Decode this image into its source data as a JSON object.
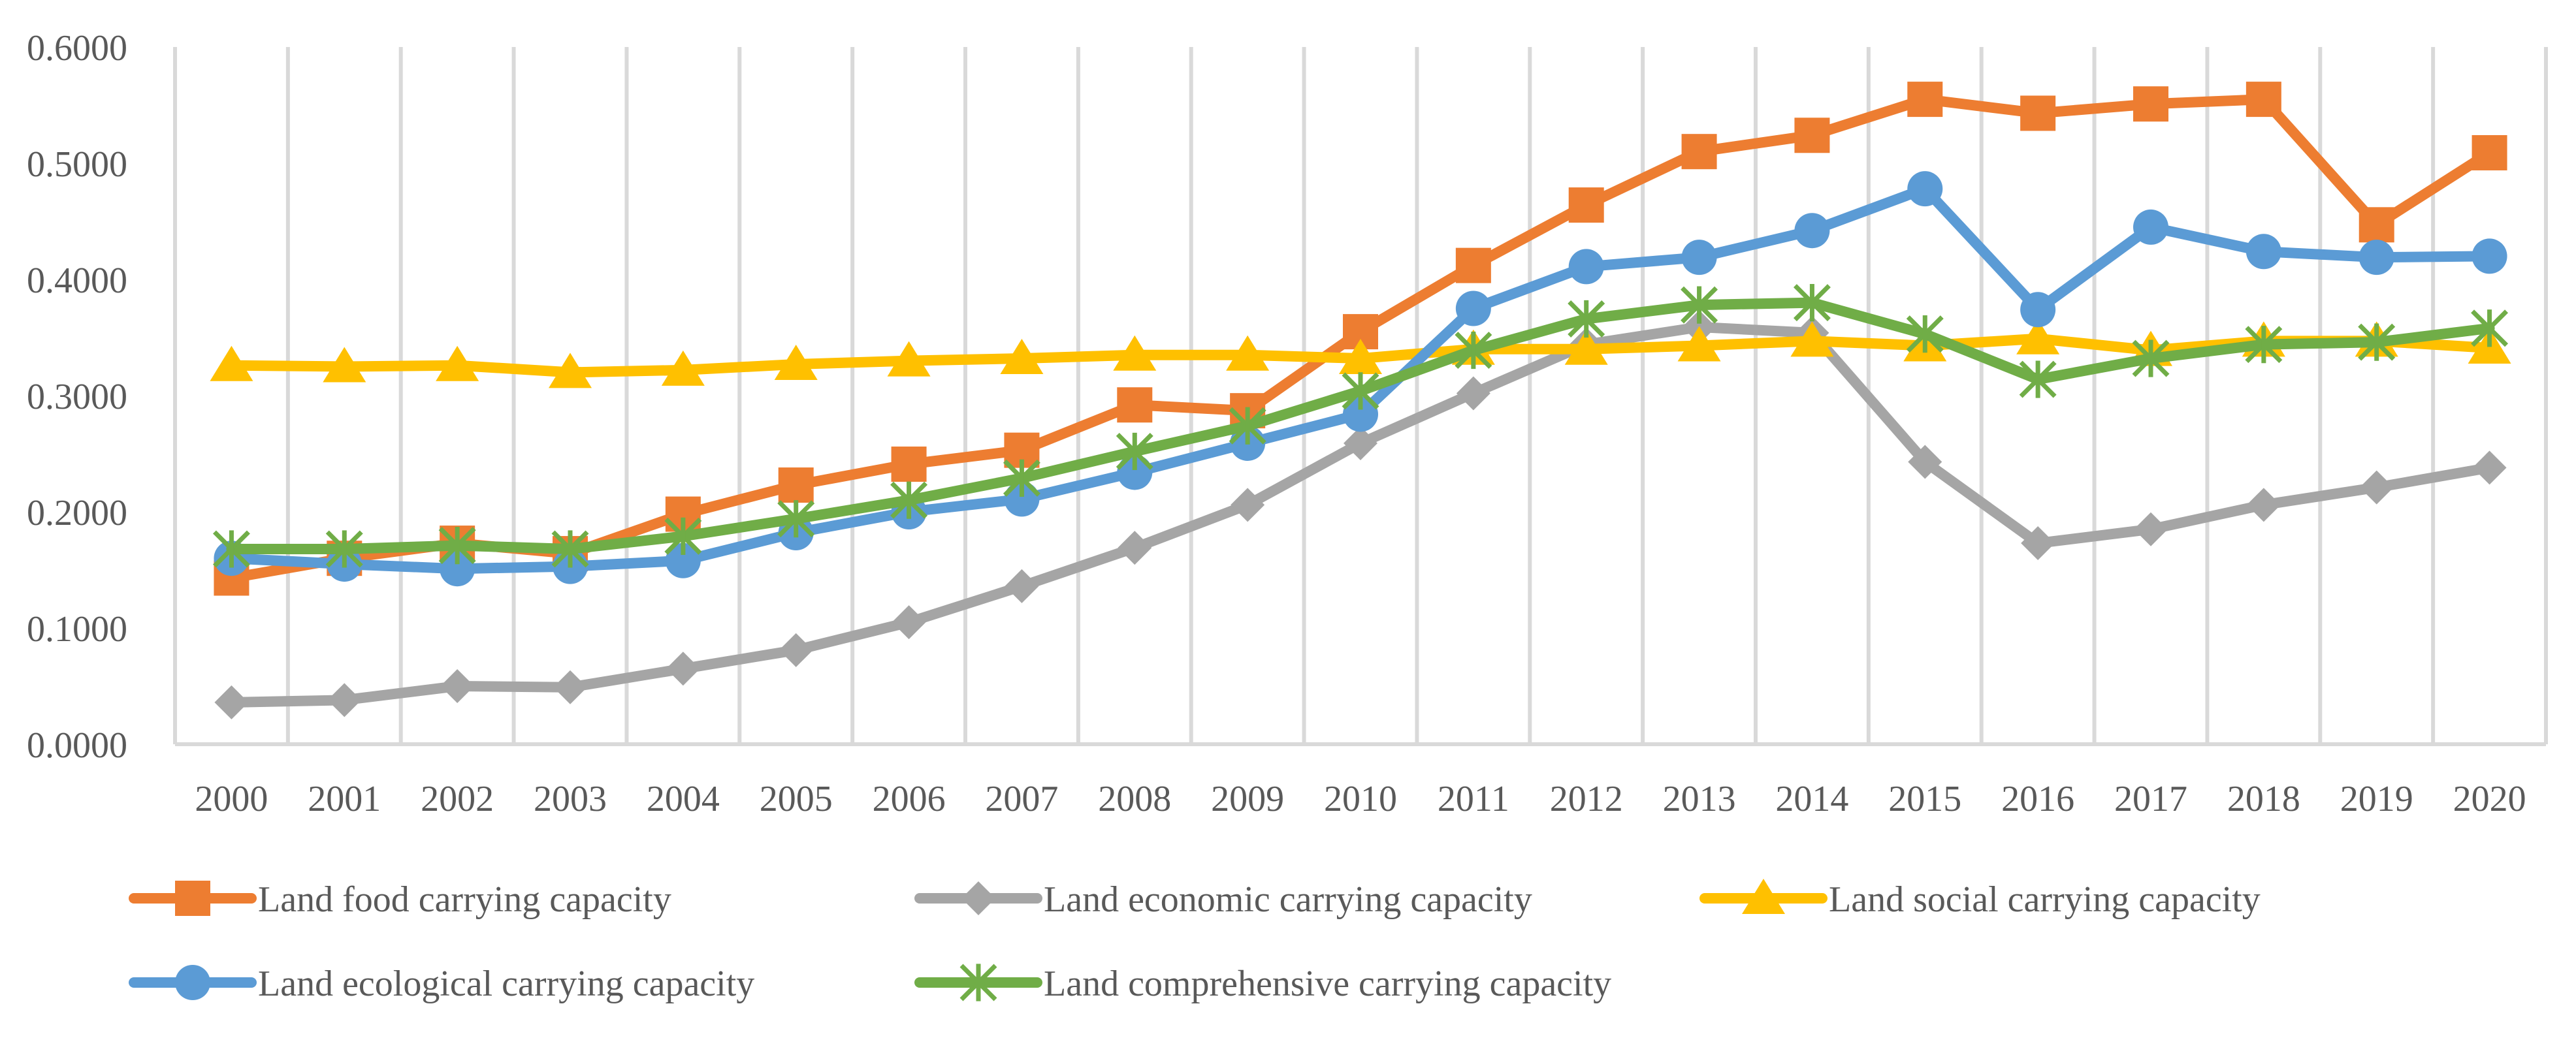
{
  "chart_data": {
    "type": "line",
    "title": "",
    "xlabel": "",
    "ylabel": "",
    "ylim": [
      0,
      0.6
    ],
    "y_ticks": [
      "0.0000",
      "0.1000",
      "0.2000",
      "0.3000",
      "0.4000",
      "0.5000",
      "0.6000"
    ],
    "grid": "vertical",
    "legend_position": "bottom",
    "categories": [
      "2000",
      "2001",
      "2002",
      "2003",
      "2004",
      "2005",
      "2006",
      "2007",
      "2008",
      "2009",
      "2010",
      "2011",
      "2012",
      "2013",
      "2014",
      "2015",
      "2016",
      "2017",
      "2018",
      "2019",
      "2020"
    ],
    "series": [
      {
        "name": "Land food carrying capacity",
        "color": "#ED7D31",
        "marker": "square",
        "values": [
          0.143,
          0.16,
          0.173,
          0.164,
          0.198,
          0.223,
          0.241,
          0.253,
          0.292,
          0.287,
          0.355,
          0.412,
          0.464,
          0.51,
          0.524,
          0.555,
          0.543,
          0.551,
          0.555,
          0.447,
          0.509
        ]
      },
      {
        "name": "Land economic carrying capacity",
        "color": "#A5A5A5",
        "marker": "diamond",
        "values": [
          0.036,
          0.038,
          0.05,
          0.049,
          0.065,
          0.081,
          0.105,
          0.136,
          0.169,
          0.206,
          0.259,
          0.302,
          0.344,
          0.359,
          0.354,
          0.243,
          0.173,
          0.185,
          0.206,
          0.221,
          0.238
        ]
      },
      {
        "name": "Land social carrying capacity",
        "color": "#FFC000",
        "marker": "triangle",
        "values": [
          0.326,
          0.325,
          0.326,
          0.32,
          0.322,
          0.327,
          0.33,
          0.332,
          0.335,
          0.335,
          0.332,
          0.34,
          0.34,
          0.343,
          0.347,
          0.343,
          0.349,
          0.339,
          0.347,
          0.347,
          0.341
        ]
      },
      {
        "name": "Land ecological carrying capacity",
        "color": "#5B9BD5",
        "marker": "circle",
        "values": [
          0.16,
          0.155,
          0.151,
          0.153,
          0.158,
          0.182,
          0.2,
          0.211,
          0.234,
          0.259,
          0.284,
          0.375,
          0.411,
          0.419,
          0.442,
          0.478,
          0.374,
          0.445,
          0.424,
          0.419,
          0.42
        ]
      },
      {
        "name": "Land comprehensive carrying capacity",
        "color": "#70AD47",
        "marker": "star",
        "values": [
          0.168,
          0.168,
          0.171,
          0.168,
          0.179,
          0.194,
          0.21,
          0.229,
          0.252,
          0.274,
          0.304,
          0.339,
          0.366,
          0.378,
          0.38,
          0.353,
          0.314,
          0.332,
          0.344,
          0.346,
          0.358
        ]
      }
    ]
  }
}
